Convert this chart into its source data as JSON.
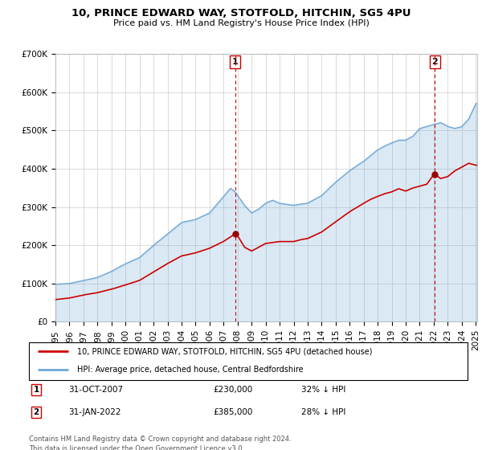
{
  "title": "10, PRINCE EDWARD WAY, STOTFOLD, HITCHIN, SG5 4PU",
  "subtitle": "Price paid vs. HM Land Registry's House Price Index (HPI)",
  "ylabel_ticks": [
    "£0",
    "£100K",
    "£200K",
    "£300K",
    "£400K",
    "£500K",
    "£600K",
    "£700K"
  ],
  "ylim": [
    0,
    700000
  ],
  "xlim_start": 1995.0,
  "xlim_end": 2025.1,
  "point1": {
    "date_num": 2007.83,
    "value": 230000,
    "label": "1",
    "date_str": "31-OCT-2007",
    "price": "£230,000",
    "hpi_note": "32% ↓ HPI"
  },
  "point2": {
    "date_num": 2022.08,
    "value": 385000,
    "label": "2",
    "date_str": "31-JAN-2022",
    "price": "£385,000",
    "hpi_note": "28% ↓ HPI"
  },
  "legend_line1": "10, PRINCE EDWARD WAY, STOTFOLD, HITCHIN, SG5 4PU (detached house)",
  "legend_line2": "HPI: Average price, detached house, Central Bedfordshire",
  "footer": "Contains HM Land Registry data © Crown copyright and database right 2024.\nThis data is licensed under the Open Government Licence v3.0.",
  "hpi_color": "#6fa8d6",
  "hpi_fill_color": "#ddeeff",
  "price_color": "#cc0000",
  "point_marker_color": "#990000",
  "dashed_line_color": "#cc0000",
  "background_color": "#ffffff",
  "grid_color": "#cccccc",
  "title_fontsize": 9.5,
  "subtitle_fontsize": 8,
  "tick_fontsize": 7.5
}
